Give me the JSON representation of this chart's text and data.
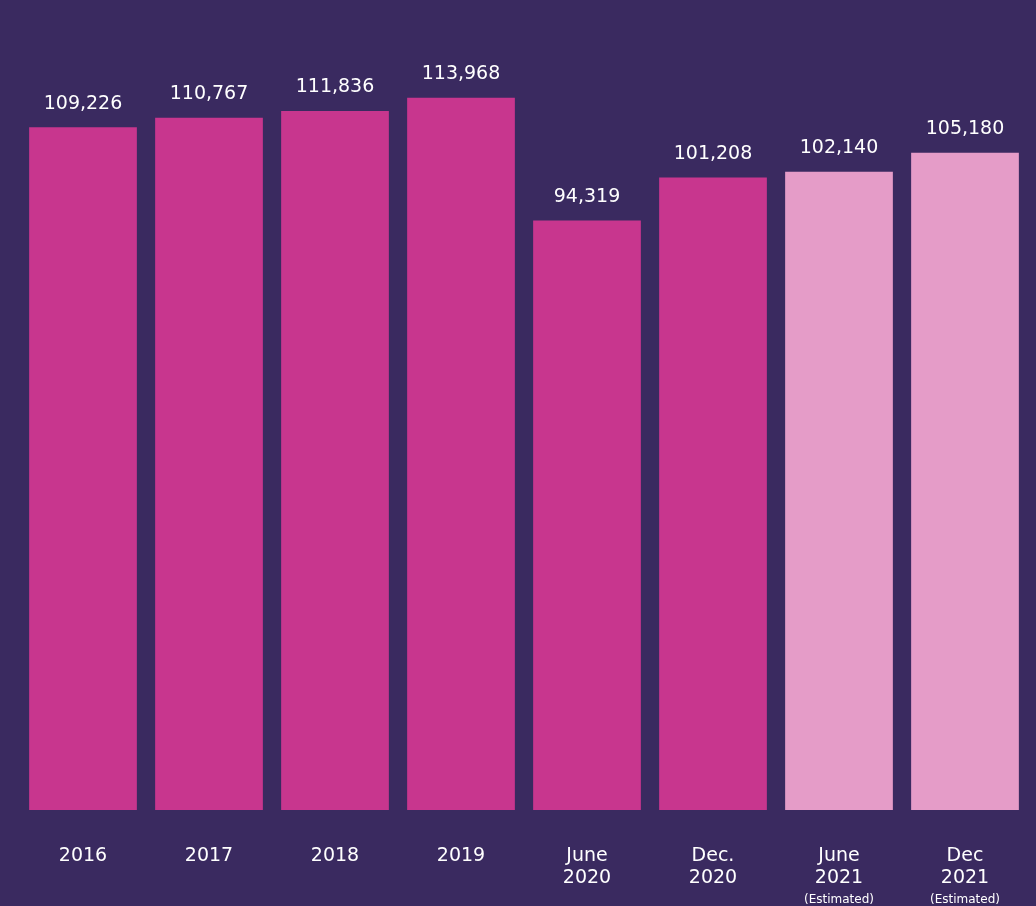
{
  "chart_data": {
    "type": "bar",
    "categories": [
      "2016",
      "2017",
      "2018",
      "2019",
      "June 2020",
      "Dec. 2020",
      "June 2021 (Estimated)",
      "Dec 2021 (Estimated)"
    ],
    "values": [
      109226,
      110767,
      111836,
      113968,
      94319,
      101208,
      102140,
      105180
    ],
    "colors": [
      "#c8368e",
      "#c8368e",
      "#c8368e",
      "#c8368e",
      "#c8368e",
      "#c8368e",
      "#e59cc8",
      "#e59cc8"
    ],
    "value_labels": [
      "109,226",
      "110,767",
      "111,836",
      "113,968",
      "94,319",
      "101,208",
      "102,140",
      "105,180"
    ],
    "grid": false,
    "legend": false
  }
}
